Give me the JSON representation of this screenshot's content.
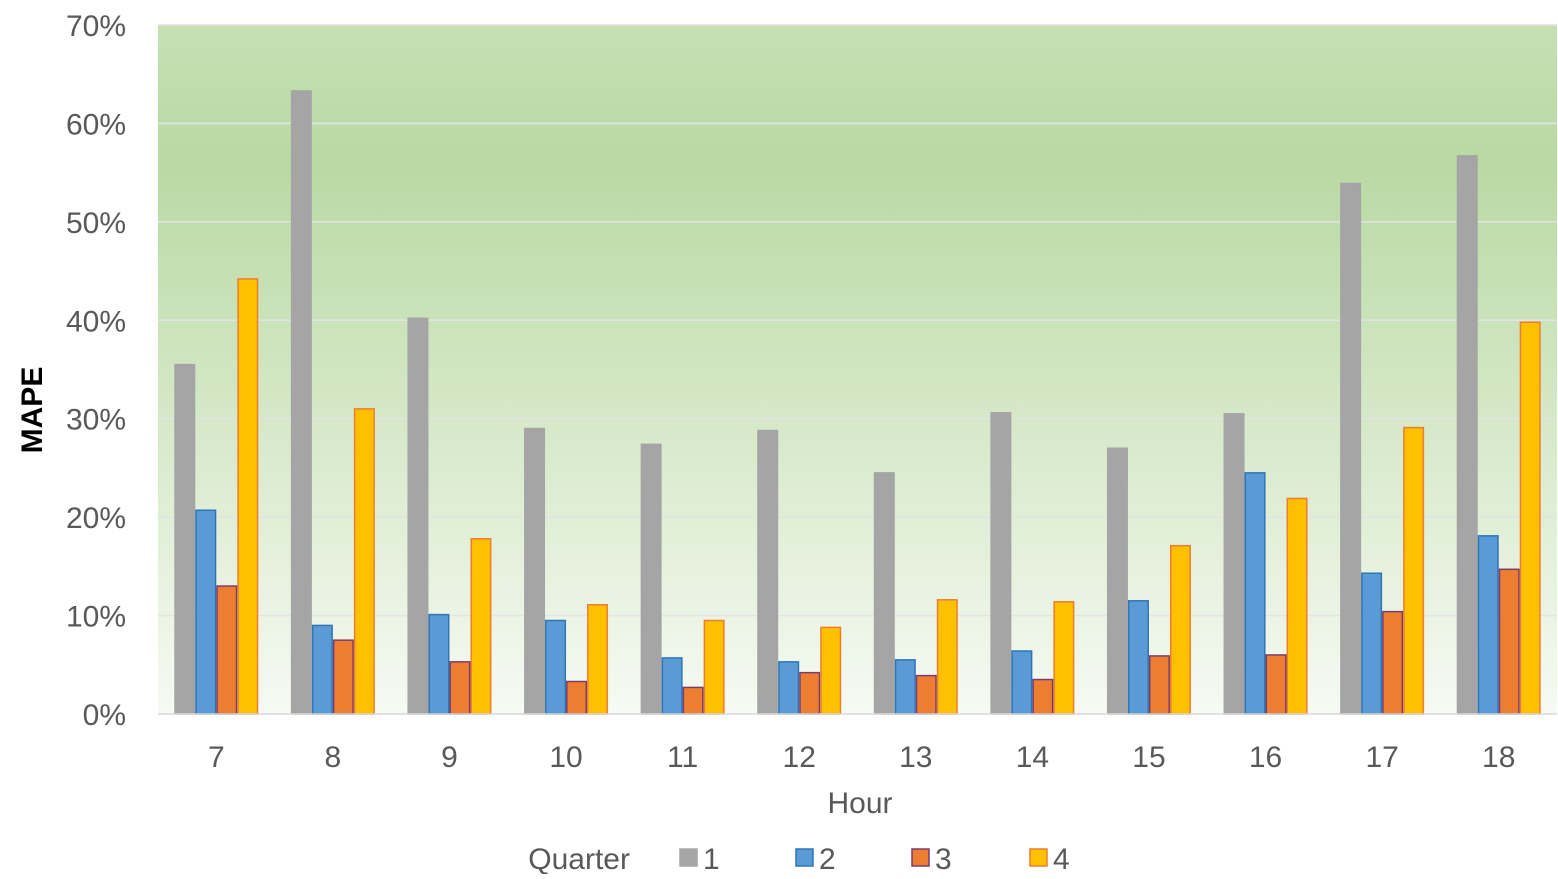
{
  "chart_data": {
    "type": "bar",
    "xlabel": "Hour",
    "ylabel": "MAPE",
    "ylim": [
      0,
      0.7
    ],
    "yticks": [
      "0%",
      "10%",
      "20%",
      "30%",
      "40%",
      "50%",
      "60%",
      "70%"
    ],
    "grid": true,
    "legend": {
      "title": "Quarter",
      "placement": "bottom"
    },
    "categories": [
      "7",
      "8",
      "9",
      "10",
      "11",
      "12",
      "13",
      "14",
      "15",
      "16",
      "17",
      "18"
    ],
    "series": [
      {
        "name": "1",
        "color": "#a5a5a5",
        "edge": "#a5a5a5",
        "values": [
          0.355,
          0.633,
          0.402,
          0.29,
          0.274,
          0.288,
          0.245,
          0.306,
          0.27,
          0.305,
          0.539,
          0.567
        ]
      },
      {
        "name": "2",
        "color": "#5b9bd5",
        "edge": "#2e75b6",
        "values": [
          0.207,
          0.09,
          0.101,
          0.095,
          0.057,
          0.053,
          0.055,
          0.064,
          0.115,
          0.245,
          0.143,
          0.181
        ]
      },
      {
        "name": "3",
        "color": "#ed7d31",
        "edge": "#7a3c6e",
        "values": [
          0.13,
          0.075,
          0.053,
          0.033,
          0.027,
          0.042,
          0.039,
          0.035,
          0.059,
          0.06,
          0.104,
          0.147
        ]
      },
      {
        "name": "4",
        "color": "#ffc000",
        "edge": "#ed7d31",
        "values": [
          0.442,
          0.31,
          0.178,
          0.111,
          0.095,
          0.088,
          0.116,
          0.114,
          0.171,
          0.219,
          0.291,
          0.398
        ]
      }
    ],
    "background_gradient": [
      "#c6e0b4",
      "#f6faf3"
    ]
  }
}
